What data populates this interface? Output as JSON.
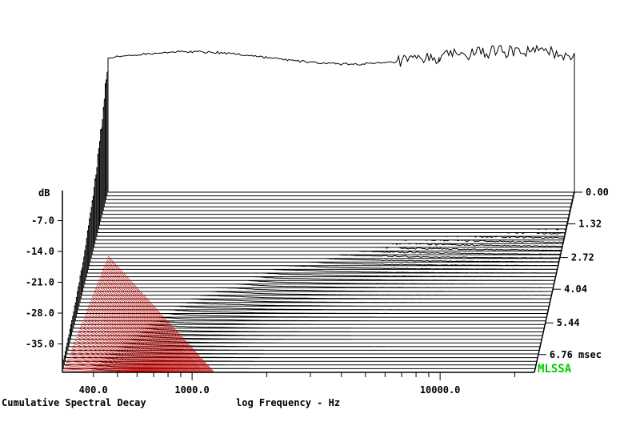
{
  "chart_data": {
    "type": "waterfall",
    "title": "Cumulative Spectral Decay",
    "xlabel": "log Frequency - Hz",
    "x_scale": "log",
    "x_tick_labels": [
      "400.0",
      "1000.0",
      "10000.0"
    ],
    "x_tick_values": [
      400,
      1000,
      10000
    ],
    "ylabel": "dB",
    "y_tick_labels": [
      "-7.0",
      "-14.0",
      "-21.0",
      "-28.0",
      "-35.0"
    ],
    "y_tick_values": [
      -7,
      -14,
      -21,
      -28,
      -35
    ],
    "z_label": "msec",
    "z_tick_labels": [
      "0.00",
      "1.32",
      "2.72",
      "4.04",
      "5.44",
      "6.76 msec"
    ],
    "z_tick_values": [
      0.0,
      1.32,
      2.72,
      4.04,
      5.44,
      6.76
    ],
    "brand": "MLSSA",
    "colors": {
      "trace": "#000000",
      "hatch": "#cc0000",
      "brand": "#00cc00"
    },
    "series_count": 50
  }
}
